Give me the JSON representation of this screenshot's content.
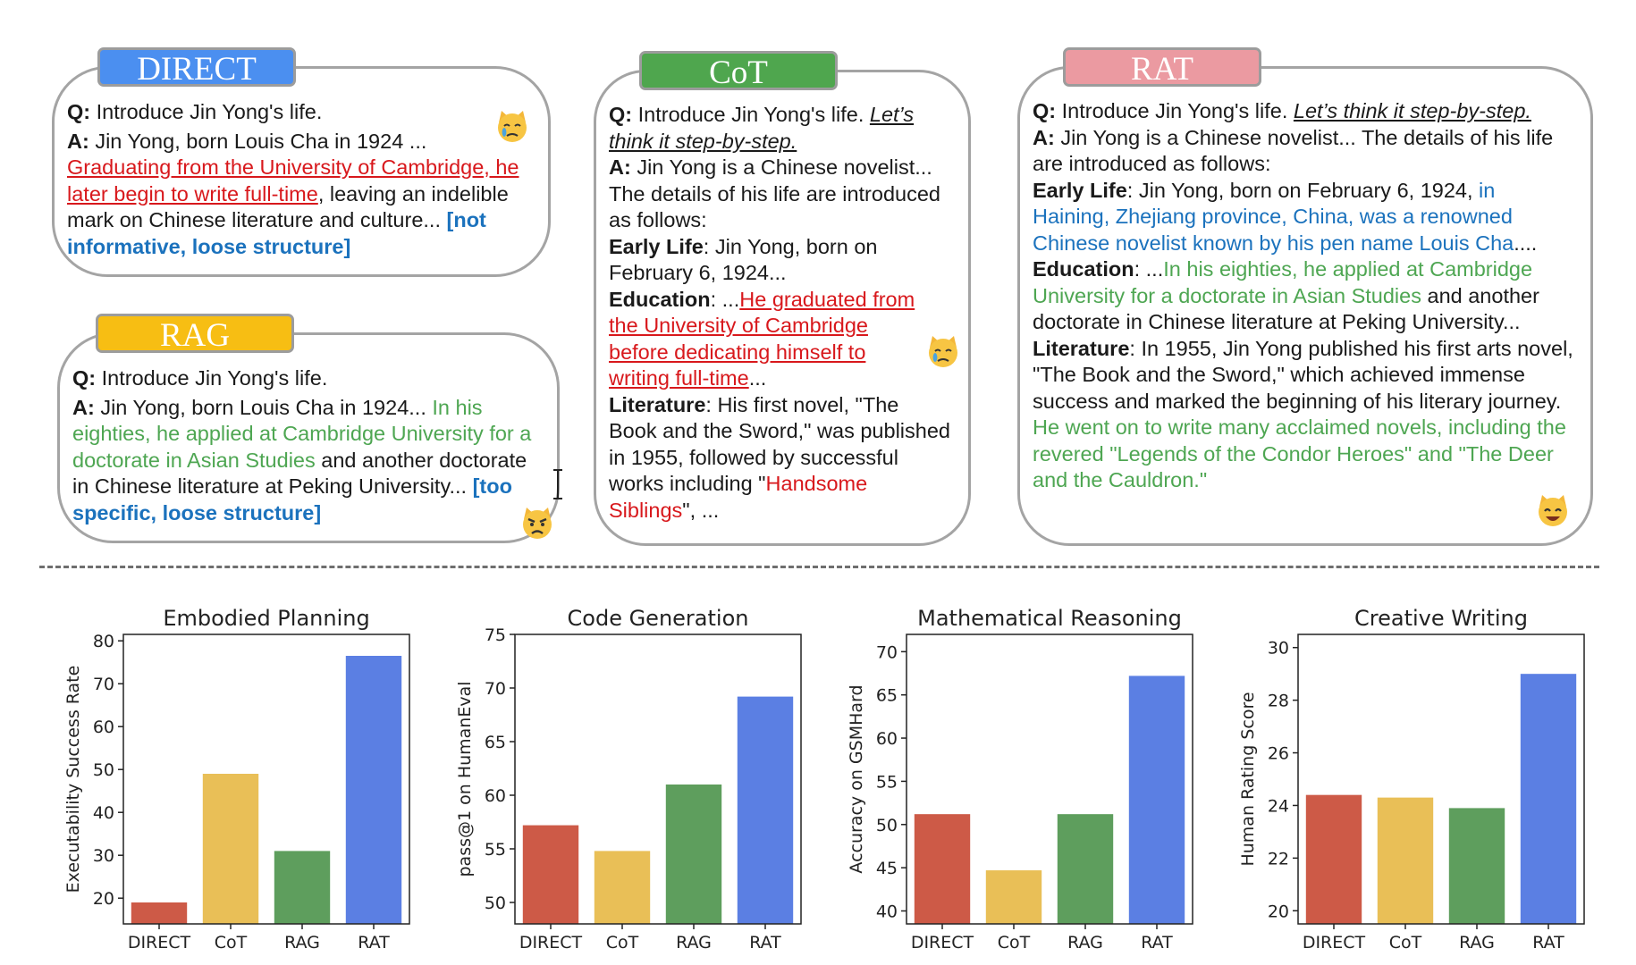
{
  "panels": {
    "direct": {
      "tab": "DIRECT",
      "q_label": "Q:",
      "q_text": " Introduce Jin Yong's life.",
      "a_label": "A:",
      "a_text": "  Jin Yong, born Louis Cha in 1924 ...",
      "halluc": "Graduating from the University of Cambridge, he later begin to write full-time",
      "rest": ", leaving an indelible mark on Chinese literature and culture... ",
      "note": "[not informative, loose structure]"
    },
    "rag": {
      "tab": "RAG",
      "q_label": "Q:",
      "q_text": " Introduce Jin Yong's life.",
      "a_label": "A:",
      "a_text": "  Jin Yong, born Louis Cha in 1924... ",
      "green": "In his eighties, he applied at Cambridge University for a doctorate in Asian Studies",
      "rest": " and another doctorate in Chinese literature at Peking University... ",
      "note": "[too specific, loose structure]"
    },
    "cot": {
      "tab": "CoT",
      "q_label": "Q:",
      "q_text": " Introduce Jin Yong's life. ",
      "q_cot": "Let’s think it step-by-step.",
      "a_label": "A:",
      "a_text": " Jin Yong is a Chinese novelist... The details of his life are introduced as follows:",
      "early_label": "Early Life",
      "early_text": ": Jin Yong, born on February 6, 1924...",
      "edu_label": "Education",
      "edu_pre": ": ...",
      "edu_red": "He graduated from the University of Cambridge before dedicating himself to writing full-time",
      "edu_post": "...",
      "lit_label": "Literature",
      "lit_text": ": His first novel, \"The Book and the Sword,\" was published in 1955, followed by successful works including \"",
      "lit_red": "Handsome Siblings",
      "lit_end": "\", ..."
    },
    "rat": {
      "tab": "RAT",
      "q_label": "Q:",
      "q_text": " Introduce Jin Yong's life. ",
      "q_cot": "Let’s think it step-by-step.",
      "a_label": "A:",
      "a_text": " Jin Yong is a Chinese novelist... The details of his life are introduced as follows:",
      "early_label": "Early Life",
      "early_text": ": Jin Yong, born on February 6, 1924, ",
      "early_blue": "in Haining, Zhejiang province, China, was a renowned Chinese novelist known by his pen name Louis Cha",
      "early_end": "....",
      "edu_label": "Education",
      "edu_pre": ": ...",
      "edu_green": "In his eighties, he applied at Cambridge University for a doctorate in Asian Studies",
      "edu_post": " and another doctorate in Chinese literature at Peking University...",
      "lit_label": "Literature",
      "lit_text": ": In 1955, Jin Yong published his first arts novel, \"The Book and the Sword,\" which achieved immense success and marked the beginning of his literary journey. ",
      "lit_green": "He went on to write many acclaimed novels, including the revered \"Legends of the Condor Heroes\" and \"The Deer and the Cauldron.\""
    }
  },
  "colors": {
    "direct_tab": "#4b8ff0",
    "cot_tab": "#4fa64e",
    "rag_tab": "#f7be13",
    "rat_tab": "#eb9aa1",
    "bar_direct": "#cd5a47",
    "bar_cot": "#e9bf57",
    "bar_rag": "#5e9e5d",
    "bar_rat": "#5b7fe3"
  },
  "chart_data": [
    {
      "type": "bar",
      "title": "Embodied Planning",
      "ylabel": "Executability Success Rate",
      "categories": [
        "DIRECT",
        "CoT",
        "RAG",
        "RAT"
      ],
      "values": [
        19,
        49,
        31,
        76.5
      ],
      "ylim": [
        14,
        81.5
      ],
      "yticks": [
        20,
        30,
        40,
        50,
        60,
        70,
        80
      ]
    },
    {
      "type": "bar",
      "title": "Code Generation",
      "ylabel": "pass@1 on HumanEval",
      "categories": [
        "DIRECT",
        "CoT",
        "RAG",
        "RAT"
      ],
      "values": [
        57.2,
        54.8,
        61,
        69.2
      ],
      "ylim": [
        48,
        75
      ],
      "yticks": [
        50,
        55,
        60,
        65,
        70,
        75
      ]
    },
    {
      "type": "bar",
      "title": "Mathematical Reasoning",
      "ylabel": "Accuracy on GSMHard",
      "categories": [
        "DIRECT",
        "CoT",
        "RAG",
        "RAT"
      ],
      "values": [
        51.2,
        44.7,
        51.2,
        67.2
      ],
      "ylim": [
        38.5,
        72
      ],
      "yticks": [
        40,
        45,
        50,
        55,
        60,
        65,
        70
      ]
    },
    {
      "type": "bar",
      "title": "Creative Writing",
      "ylabel": "Human Rating Score",
      "categories": [
        "DIRECT",
        "CoT",
        "RAG",
        "RAT"
      ],
      "values": [
        24.4,
        24.3,
        23.9,
        29
      ],
      "ylim": [
        19.5,
        30.5
      ],
      "yticks": [
        20,
        22,
        24,
        26,
        28,
        30
      ]
    }
  ]
}
